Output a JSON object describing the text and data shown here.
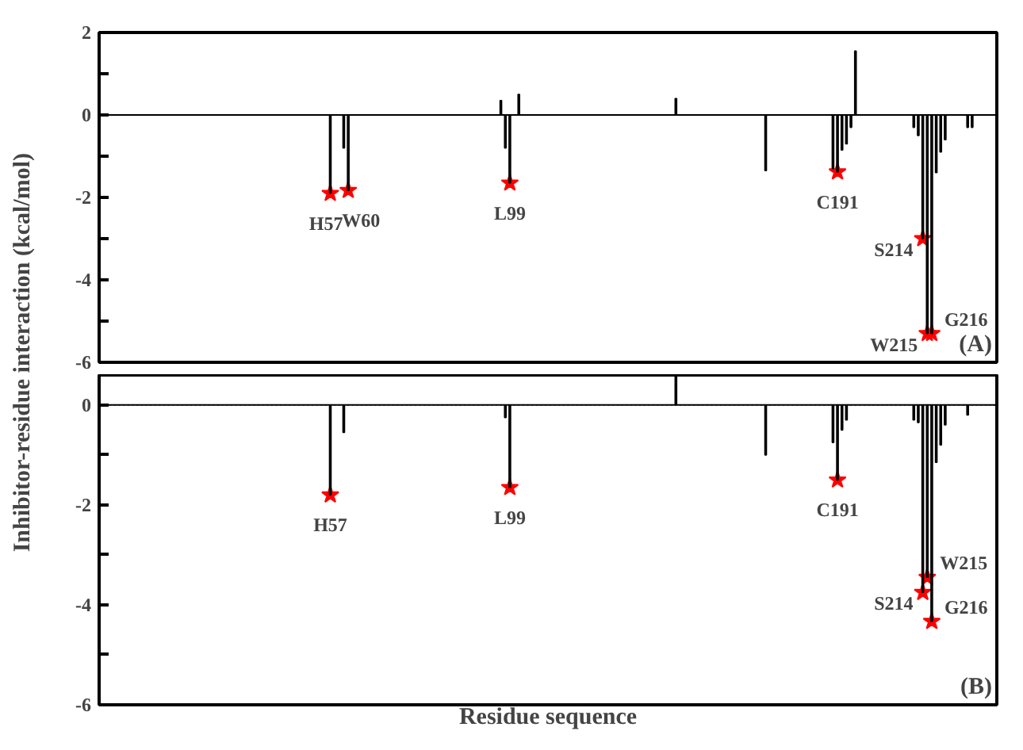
{
  "chart_data": [
    {
      "type": "bar",
      "ylabel": "Inhibitor-residue interaction (kcal/mol)",
      "categories": [
        null,
        null,
        null,
        null,
        null,
        null,
        null,
        null,
        null,
        null,
        null,
        null,
        null,
        null,
        null,
        null,
        null,
        null,
        null,
        null,
        null,
        null,
        null,
        null,
        null,
        null,
        null,
        null,
        null,
        null,
        null,
        null,
        null,
        null,
        null,
        null,
        null,
        null,
        null,
        null,
        null,
        null,
        null,
        null,
        null,
        null,
        null,
        null,
        null,
        null,
        null,
        null,
        null,
        null,
        null,
        null,
        null,
        null,
        null,
        null,
        null,
        null,
        null,
        null,
        null,
        null,
        null,
        null,
        null,
        null,
        null,
        null,
        null,
        null,
        null,
        null,
        null,
        null,
        null,
        null,
        null,
        null,
        null,
        null,
        null,
        null,
        null,
        null,
        null,
        null,
        null,
        null,
        null,
        null,
        null,
        null,
        null,
        null,
        null,
        null,
        null,
        null,
        null,
        null,
        null,
        null,
        null,
        null,
        null,
        null,
        null,
        null,
        null,
        null,
        null,
        null,
        null,
        null,
        null,
        null,
        null,
        null,
        null,
        null,
        null,
        null,
        null,
        null,
        null,
        null,
        null,
        null,
        null,
        null,
        null,
        null,
        null,
        null,
        null,
        null,
        null,
        null,
        null,
        null,
        null,
        null,
        null,
        null,
        null,
        null,
        null,
        null,
        null,
        null,
        null,
        null,
        null,
        null,
        null,
        null,
        null,
        null,
        null,
        null,
        null,
        null,
        null,
        null,
        null,
        null,
        null,
        null,
        null,
        null,
        null,
        null,
        null,
        null,
        null,
        null,
        null,
        null,
        null,
        null,
        null,
        null,
        null,
        null,
        null,
        null,
        null,
        null,
        null,
        null,
        null,
        null,
        null,
        null,
        null,
        null
      ],
      "series": [
        {
          "type": "bar",
          "color": "#000000",
          "values": [
            0,
            0,
            0,
            0,
            0,
            0,
            0,
            0,
            0,
            0,
            0,
            0,
            0,
            0,
            0,
            0,
            0,
            0,
            0,
            0,
            0,
            0,
            0,
            0,
            0,
            0,
            0,
            0,
            0,
            0,
            0,
            0,
            0,
            0,
            0,
            0,
            0,
            0,
            0,
            0,
            0,
            0,
            0,
            0,
            0,
            0,
            0,
            0,
            0,
            0,
            0,
            -1.9,
            0,
            0,
            -0.8,
            -1.83,
            0,
            0,
            0,
            0,
            0,
            0,
            0,
            0,
            0,
            0,
            0,
            0,
            0,
            0,
            0,
            0,
            0,
            0,
            0,
            0,
            0,
            0,
            0,
            0,
            0,
            0,
            0,
            0,
            0,
            0,
            0,
            0,
            0,
            0.35,
            -0.8,
            -1.65,
            0,
            0.5,
            0,
            0,
            0,
            0,
            0,
            0,
            0,
            0,
            0,
            0,
            0,
            0,
            0,
            0,
            0,
            0,
            0,
            0,
            0,
            0,
            0,
            0,
            0,
            0,
            0,
            0,
            0,
            0,
            0,
            0,
            0,
            0,
            0,
            0,
            0.4,
            0,
            0,
            0,
            0,
            0,
            0,
            0,
            0,
            0,
            0,
            0,
            0,
            0,
            0,
            0,
            0,
            0,
            0,
            0,
            -1.35,
            0,
            0,
            0,
            0,
            0,
            0,
            0,
            0,
            0,
            0,
            0,
            0,
            0,
            0,
            -1.3,
            -1.38,
            -0.85,
            -0.7,
            -0.3,
            1.55,
            0,
            0,
            0,
            0,
            0,
            0,
            0,
            0,
            0,
            0,
            0,
            0,
            -0.3,
            -0.5,
            -3.0,
            -5.3,
            -5.3,
            -1.4,
            -0.9,
            -0.6,
            0,
            0,
            0,
            0,
            -0.3,
            -0.3,
            0,
            0,
            0,
            0,
            0
          ]
        },
        {
          "type": "scatter",
          "color": "#ff0000",
          "marker": "star",
          "values": [
            null,
            null,
            null,
            null,
            null,
            null,
            null,
            null,
            null,
            null,
            null,
            null,
            null,
            null,
            null,
            null,
            null,
            null,
            null,
            null,
            null,
            null,
            null,
            null,
            null,
            null,
            null,
            null,
            null,
            null,
            null,
            null,
            null,
            null,
            null,
            null,
            null,
            null,
            null,
            null,
            null,
            null,
            null,
            null,
            null,
            null,
            null,
            null,
            null,
            null,
            null,
            -1.9,
            null,
            null,
            null,
            -1.83,
            null,
            null,
            null,
            null,
            null,
            null,
            null,
            null,
            null,
            null,
            null,
            null,
            null,
            null,
            null,
            null,
            null,
            null,
            null,
            null,
            null,
            null,
            null,
            null,
            null,
            null,
            null,
            null,
            null,
            null,
            null,
            null,
            null,
            null,
            null,
            -1.65,
            null,
            null,
            null,
            null,
            null,
            null,
            null,
            null,
            null,
            null,
            null,
            null,
            null,
            null,
            null,
            null,
            null,
            null,
            null,
            null,
            null,
            null,
            null,
            null,
            null,
            null,
            null,
            null,
            null,
            null,
            null,
            null,
            null,
            null,
            null,
            null,
            null,
            null,
            null,
            null,
            null,
            null,
            null,
            null,
            null,
            null,
            null,
            null,
            null,
            null,
            null,
            null,
            null,
            null,
            null,
            null,
            null,
            null,
            null,
            null,
            null,
            null,
            null,
            null,
            null,
            null,
            null,
            null,
            null,
            null,
            null,
            null,
            -1.38,
            null,
            null,
            null,
            null,
            null,
            null,
            null,
            null,
            null,
            null,
            null,
            null,
            null,
            null,
            null,
            null,
            null,
            null,
            -3.0,
            -5.3,
            -5.3,
            null,
            null,
            null,
            null,
            null,
            null,
            null,
            null,
            null,
            null,
            null,
            null,
            null,
            null
          ],
          "value_labels": [
            null,
            null,
            null,
            null,
            null,
            null,
            null,
            null,
            null,
            null,
            null,
            null,
            null,
            null,
            null,
            null,
            null,
            null,
            null,
            null,
            null,
            null,
            null,
            null,
            null,
            null,
            null,
            null,
            null,
            null,
            null,
            null,
            null,
            null,
            null,
            null,
            null,
            null,
            null,
            null,
            null,
            null,
            null,
            null,
            null,
            null,
            null,
            null,
            null,
            null,
            null,
            "H57",
            null,
            null,
            null,
            "W60",
            null,
            null,
            null,
            null,
            null,
            null,
            null,
            null,
            null,
            null,
            null,
            null,
            null,
            null,
            null,
            null,
            null,
            null,
            null,
            null,
            null,
            null,
            null,
            null,
            null,
            null,
            null,
            null,
            null,
            null,
            null,
            null,
            null,
            null,
            null,
            "L99",
            null,
            null,
            null,
            null,
            null,
            null,
            null,
            null,
            null,
            null,
            null,
            null,
            null,
            null,
            null,
            null,
            null,
            null,
            null,
            null,
            null,
            null,
            null,
            null,
            null,
            null,
            null,
            null,
            null,
            null,
            null,
            null,
            null,
            null,
            null,
            null,
            null,
            null,
            null,
            null,
            null,
            null,
            null,
            null,
            null,
            null,
            null,
            null,
            null,
            null,
            null,
            null,
            null,
            null,
            null,
            null,
            null,
            null,
            null,
            null,
            null,
            null,
            null,
            null,
            null,
            null,
            null,
            null,
            null,
            null,
            null,
            null,
            "C191",
            null,
            null,
            null,
            null,
            null,
            null,
            null,
            null,
            null,
            null,
            null,
            null,
            null,
            null,
            null,
            null,
            null,
            null,
            "S214",
            "W215",
            "G216",
            null,
            null,
            null,
            null,
            null,
            null,
            null,
            null,
            null,
            null,
            null,
            null,
            null,
            null
          ]
        }
      ],
      "ylim": [
        -6,
        2
      ],
      "yticks": [
        -6,
        {
          "value": -5,
          "label": null
        },
        -4,
        {
          "value": -3,
          "label": null
        },
        -2,
        {
          "value": -1,
          "label": null
        },
        0,
        {
          "value": 1,
          "label": null
        },
        2
      ],
      "ref_lines": [
        {
          "axis": "y",
          "value": 0,
          "color": "#000000"
        }
      ],
      "annotations": [
        "(A)"
      ],
      "tick_labels": "y",
      "grid": false
    },
    {
      "type": "bar",
      "xlabel": "Residue sequence",
      "categories": [
        null,
        null,
        null,
        null,
        null,
        null,
        null,
        null,
        null,
        null,
        null,
        null,
        null,
        null,
        null,
        null,
        null,
        null,
        null,
        null,
        null,
        null,
        null,
        null,
        null,
        null,
        null,
        null,
        null,
        null,
        null,
        null,
        null,
        null,
        null,
        null,
        null,
        null,
        null,
        null,
        null,
        null,
        null,
        null,
        null,
        null,
        null,
        null,
        null,
        null,
        null,
        null,
        null,
        null,
        null,
        null,
        null,
        null,
        null,
        null,
        null,
        null,
        null,
        null,
        null,
        null,
        null,
        null,
        null,
        null,
        null,
        null,
        null,
        null,
        null,
        null,
        null,
        null,
        null,
        null,
        null,
        null,
        null,
        null,
        null,
        null,
        null,
        null,
        null,
        null,
        null,
        null,
        null,
        null,
        null,
        null,
        null,
        null,
        null,
        null,
        null,
        null,
        null,
        null,
        null,
        null,
        null,
        null,
        null,
        null,
        null,
        null,
        null,
        null,
        null,
        null,
        null,
        null,
        null,
        null,
        null,
        null,
        null,
        null,
        null,
        null,
        null,
        null,
        null,
        null,
        null,
        null,
        null,
        null,
        null,
        null,
        null,
        null,
        null,
        null,
        null,
        null,
        null,
        null,
        null,
        null,
        null,
        null,
        null,
        null,
        null,
        null,
        null,
        null,
        null,
        null,
        null,
        null,
        null,
        null,
        null,
        null,
        null,
        null,
        null,
        null,
        null,
        null,
        null,
        null,
        null,
        null,
        null,
        null,
        null,
        null,
        null,
        null,
        null,
        null,
        null,
        null,
        null,
        null,
        null,
        null,
        null,
        null,
        null,
        null,
        null,
        null,
        null,
        null,
        null,
        null,
        null,
        null,
        null,
        null
      ],
      "series": [
        {
          "type": "bar",
          "color": "#000000",
          "values": [
            0,
            0,
            0,
            0,
            0,
            0,
            0,
            0,
            0,
            0,
            0,
            0,
            0,
            0,
            0,
            0,
            0,
            0,
            0,
            0,
            0,
            0,
            0,
            0,
            0,
            0,
            0,
            0,
            0,
            0,
            0,
            0,
            0,
            0,
            0,
            0,
            0,
            0,
            0,
            0,
            0,
            0,
            0,
            0,
            0,
            0,
            0,
            0,
            0,
            0,
            0,
            -1.8,
            0,
            0,
            -0.55,
            0,
            0,
            0,
            0,
            0,
            0,
            0,
            0,
            0,
            0,
            0,
            0,
            0,
            0,
            0,
            0,
            0,
            0,
            0,
            0,
            0,
            0,
            0,
            0,
            0,
            0,
            0,
            0,
            0,
            0,
            0,
            0,
            0,
            0,
            0,
            -0.25,
            -1.65,
            0,
            0,
            0,
            0,
            0,
            0,
            0,
            0,
            0,
            0,
            0,
            0,
            0,
            0,
            0,
            0,
            0,
            0,
            0,
            0,
            0,
            0,
            0,
            0,
            0,
            0,
            0,
            0,
            0,
            0,
            0,
            0,
            0,
            0,
            0,
            0,
            0.6,
            0,
            0,
            0,
            0,
            0,
            0,
            0,
            0,
            0,
            0,
            0,
            0,
            0,
            0,
            0,
            0,
            0,
            0,
            0,
            -1.0,
            0,
            0,
            0,
            0,
            0,
            0,
            0,
            0,
            0,
            0,
            0,
            0,
            0,
            0,
            -0.75,
            -1.5,
            -0.5,
            -0.3,
            0,
            0,
            0,
            0,
            0,
            0,
            0,
            0,
            0,
            0,
            0,
            0,
            0,
            0,
            -0.3,
            -0.35,
            -3.75,
            -3.45,
            -4.33,
            -1.15,
            -0.8,
            -0.4,
            0,
            0,
            0,
            0,
            -0.2,
            0,
            0,
            0,
            0,
            0,
            0
          ]
        },
        {
          "type": "scatter",
          "color": "#ff0000",
          "marker": "star",
          "values": [
            null,
            null,
            null,
            null,
            null,
            null,
            null,
            null,
            null,
            null,
            null,
            null,
            null,
            null,
            null,
            null,
            null,
            null,
            null,
            null,
            null,
            null,
            null,
            null,
            null,
            null,
            null,
            null,
            null,
            null,
            null,
            null,
            null,
            null,
            null,
            null,
            null,
            null,
            null,
            null,
            null,
            null,
            null,
            null,
            null,
            null,
            null,
            null,
            null,
            null,
            null,
            -1.8,
            null,
            null,
            null,
            null,
            null,
            null,
            null,
            null,
            null,
            null,
            null,
            null,
            null,
            null,
            null,
            null,
            null,
            null,
            null,
            null,
            null,
            null,
            null,
            null,
            null,
            null,
            null,
            null,
            null,
            null,
            null,
            null,
            null,
            null,
            null,
            null,
            null,
            null,
            null,
            -1.65,
            null,
            null,
            null,
            null,
            null,
            null,
            null,
            null,
            null,
            null,
            null,
            null,
            null,
            null,
            null,
            null,
            null,
            null,
            null,
            null,
            null,
            null,
            null,
            null,
            null,
            null,
            null,
            null,
            null,
            null,
            null,
            null,
            null,
            null,
            null,
            null,
            null,
            null,
            null,
            null,
            null,
            null,
            null,
            null,
            null,
            null,
            null,
            null,
            null,
            null,
            null,
            null,
            null,
            null,
            null,
            null,
            null,
            null,
            null,
            null,
            null,
            null,
            null,
            null,
            null,
            null,
            null,
            null,
            null,
            null,
            null,
            null,
            -1.5,
            null,
            null,
            null,
            null,
            null,
            null,
            null,
            null,
            null,
            null,
            null,
            null,
            null,
            null,
            null,
            null,
            null,
            null,
            -3.75,
            -3.45,
            -4.33,
            null,
            null,
            null,
            null,
            null,
            null,
            null,
            null,
            null,
            null,
            null,
            null,
            null,
            null
          ],
          "value_labels": [
            null,
            null,
            null,
            null,
            null,
            null,
            null,
            null,
            null,
            null,
            null,
            null,
            null,
            null,
            null,
            null,
            null,
            null,
            null,
            null,
            null,
            null,
            null,
            null,
            null,
            null,
            null,
            null,
            null,
            null,
            null,
            null,
            null,
            null,
            null,
            null,
            null,
            null,
            null,
            null,
            null,
            null,
            null,
            null,
            null,
            null,
            null,
            null,
            null,
            null,
            null,
            "H57",
            null,
            null,
            null,
            null,
            null,
            null,
            null,
            null,
            null,
            null,
            null,
            null,
            null,
            null,
            null,
            null,
            null,
            null,
            null,
            null,
            null,
            null,
            null,
            null,
            null,
            null,
            null,
            null,
            null,
            null,
            null,
            null,
            null,
            null,
            null,
            null,
            null,
            null,
            null,
            "L99",
            null,
            null,
            null,
            null,
            null,
            null,
            null,
            null,
            null,
            null,
            null,
            null,
            null,
            null,
            null,
            null,
            null,
            null,
            null,
            null,
            null,
            null,
            null,
            null,
            null,
            null,
            null,
            null,
            null,
            null,
            null,
            null,
            null,
            null,
            null,
            null,
            null,
            null,
            null,
            null,
            null,
            null,
            null,
            null,
            null,
            null,
            null,
            null,
            null,
            null,
            null,
            null,
            null,
            null,
            null,
            null,
            null,
            null,
            null,
            null,
            null,
            null,
            null,
            null,
            null,
            null,
            null,
            null,
            null,
            null,
            null,
            null,
            "C191",
            null,
            null,
            null,
            null,
            null,
            null,
            null,
            null,
            null,
            null,
            null,
            null,
            null,
            null,
            null,
            null,
            null,
            null,
            "S214",
            "W215",
            "G216",
            null,
            null,
            null,
            null,
            null,
            null,
            null,
            null,
            null,
            null,
            null,
            null,
            null,
            null
          ]
        }
      ],
      "ylim": [
        -6,
        0.6
      ],
      "yticks": [
        -6,
        {
          "value": -5,
          "label": null
        },
        -4,
        {
          "value": -3,
          "label": null
        },
        -2,
        {
          "value": -1,
          "label": null
        },
        0
      ],
      "ref_lines": [
        {
          "axis": "y",
          "value": 0,
          "color": "#000000"
        }
      ],
      "annotations": [
        "(B)"
      ],
      "tick_labels": "y",
      "grid": false
    }
  ]
}
